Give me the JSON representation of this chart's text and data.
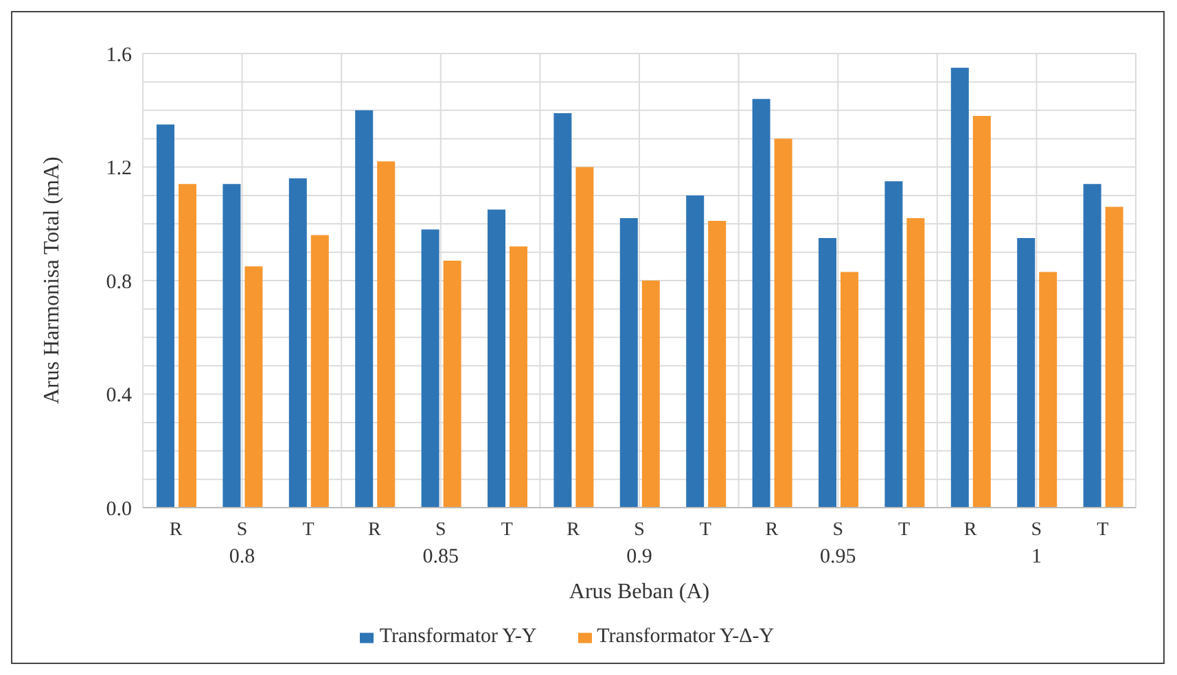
{
  "chart_data": {
    "type": "bar",
    "xlabel": "Arus Beban (A)",
    "ylabel": "Arus Harmonisa Total (mA)",
    "categories": [
      "R",
      "S",
      "T",
      "R",
      "S",
      "T",
      "R",
      "S",
      "T",
      "R",
      "S",
      "T",
      "R",
      "S",
      "T"
    ],
    "annotations": [
      "0.8",
      "0.85",
      "0.9",
      "0.95",
      "1"
    ],
    "series": [
      {
        "name": "Transformator Y-Y",
        "color": "#2e75b6",
        "values": [
          1.35,
          1.14,
          1.16,
          1.4,
          0.98,
          1.05,
          1.39,
          1.02,
          1.1,
          1.44,
          0.95,
          1.15,
          1.55,
          0.95,
          1.14
        ]
      },
      {
        "name": "Transformator Y-Δ-Y",
        "color": "#f7972f",
        "values": [
          1.14,
          0.85,
          0.96,
          1.22,
          0.87,
          0.92,
          1.2,
          0.8,
          1.01,
          1.3,
          0.83,
          1.02,
          1.38,
          0.83,
          1.06
        ]
      }
    ],
    "ylim": [
      0,
      1.6
    ],
    "yticks": [
      {
        "value": 0,
        "label": "0.0"
      },
      {
        "value": 0.1,
        "label": null
      },
      {
        "value": 0.2,
        "label": null
      },
      {
        "value": 0.3,
        "label": null
      },
      0.4,
      {
        "value": 0.5,
        "label": null
      },
      {
        "value": 0.6,
        "label": null
      },
      {
        "value": 0.7,
        "label": null
      },
      0.8,
      {
        "value": 0.9,
        "label": null
      },
      {
        "value": 1.0,
        "label": null
      },
      {
        "value": 1.1,
        "label": null
      },
      1.2,
      {
        "value": 1.3,
        "label": null
      },
      {
        "value": 1.4,
        "label": null
      },
      {
        "value": 1.5,
        "label": null
      },
      1.6
    ],
    "grid": true,
    "legend": "bottom"
  }
}
